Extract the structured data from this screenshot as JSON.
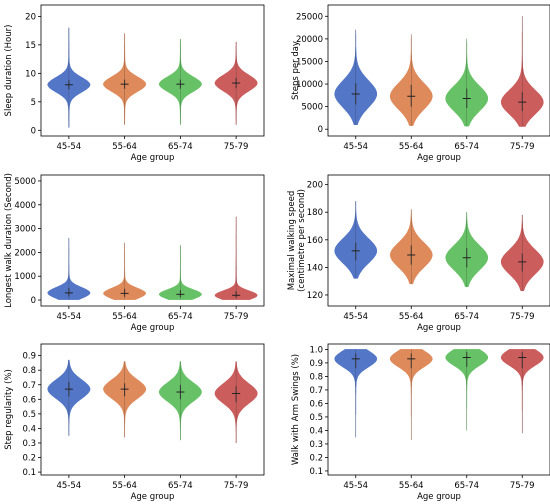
{
  "chart_data": [
    {
      "type": "violin",
      "xlabel": "Age group",
      "ylabel": "Sleep duration (Hour)",
      "categories": [
        "45-54",
        "55-64",
        "65-74",
        "75-79"
      ],
      "yticks": [
        "0",
        "5",
        "10",
        "15",
        "20"
      ],
      "ylim": [
        -1,
        22
      ],
      "distributions": [
        {
          "category": "45-54",
          "median": 8.0,
          "q1": 7.2,
          "q3": 8.8,
          "min": 0.5,
          "max": 18.0,
          "spread": 1.3
        },
        {
          "category": "55-64",
          "median": 8.1,
          "q1": 7.3,
          "q3": 8.9,
          "min": 1.0,
          "max": 17.0,
          "spread": 1.3
        },
        {
          "category": "65-74",
          "median": 8.1,
          "q1": 7.3,
          "q3": 8.9,
          "min": 1.0,
          "max": 16.0,
          "spread": 1.3
        },
        {
          "category": "75-79",
          "median": 8.3,
          "q1": 7.4,
          "q3": 9.2,
          "min": 1.0,
          "max": 15.5,
          "spread": 1.4
        }
      ]
    },
    {
      "type": "violin",
      "xlabel": "Age group",
      "ylabel": "Steps per day",
      "categories": [
        "45-54",
        "55-64",
        "65-74",
        "75-79"
      ],
      "yticks": [
        "0",
        "5000",
        "10000",
        "15000",
        "20000",
        "25000"
      ],
      "ylim": [
        -1500,
        27500
      ],
      "distributions": [
        {
          "category": "45-54",
          "median": 7800,
          "q1": 5500,
          "q3": 10200,
          "min": 1000,
          "max": 22000,
          "spread": 3000
        },
        {
          "category": "55-64",
          "median": 7300,
          "q1": 5000,
          "q3": 9800,
          "min": 800,
          "max": 21000,
          "spread": 2900
        },
        {
          "category": "65-74",
          "median": 6800,
          "q1": 4700,
          "q3": 9000,
          "min": 700,
          "max": 20000,
          "spread": 2800
        },
        {
          "category": "75-79",
          "median": 6000,
          "q1": 4000,
          "q3": 8200,
          "min": 600,
          "max": 25000,
          "spread": 2700
        }
      ]
    },
    {
      "type": "violin",
      "xlabel": "Age group",
      "ylabel": "Longest walk duration (Second)",
      "categories": [
        "45-54",
        "55-64",
        "65-74",
        "75-79"
      ],
      "yticks": [
        "0",
        "1000",
        "2000",
        "3000",
        "4000",
        "5000"
      ],
      "ylim": [
        -250,
        5250
      ],
      "distributions": [
        {
          "category": "45-54",
          "median": 300,
          "q1": 150,
          "q3": 500,
          "min": 20,
          "max": 2600,
          "spread": 230
        },
        {
          "category": "55-64",
          "median": 280,
          "q1": 140,
          "q3": 470,
          "min": 20,
          "max": 2400,
          "spread": 220
        },
        {
          "category": "65-74",
          "median": 240,
          "q1": 120,
          "q3": 420,
          "min": 20,
          "max": 2300,
          "spread": 200
        },
        {
          "category": "75-79",
          "median": 200,
          "q1": 100,
          "q3": 380,
          "min": 20,
          "max": 3500,
          "spread": 190
        }
      ]
    },
    {
      "type": "violin",
      "xlabel": "Age group",
      "ylabel": "Maximal walking speed (centimetre per second)",
      "categories": [
        "45-54",
        "55-64",
        "65-74",
        "75-79"
      ],
      "yticks": [
        "120",
        "140",
        "160",
        "180",
        "200"
      ],
      "ylim": [
        112,
        207
      ],
      "distributions": [
        {
          "category": "45-54",
          "median": 152,
          "q1": 145,
          "q3": 158,
          "min": 132,
          "max": 188,
          "spread": 9
        },
        {
          "category": "55-64",
          "median": 149,
          "q1": 142,
          "q3": 156,
          "min": 128,
          "max": 182,
          "spread": 9
        },
        {
          "category": "65-74",
          "median": 147,
          "q1": 140,
          "q3": 154,
          "min": 126,
          "max": 180,
          "spread": 9
        },
        {
          "category": "75-79",
          "median": 144,
          "q1": 137,
          "q3": 150,
          "min": 123,
          "max": 178,
          "spread": 9
        }
      ]
    },
    {
      "type": "violin",
      "xlabel": "Age group",
      "ylabel": "Step regularity (%)",
      "categories": [
        "45-54",
        "55-64",
        "65-74",
        "75-79"
      ],
      "yticks": [
        "0.1",
        "0.2",
        "0.3",
        "0.4",
        "0.5",
        "0.6",
        "0.7",
        "0.8",
        "0.9"
      ],
      "ylim": [
        0.08,
        0.98
      ],
      "distributions": [
        {
          "category": "45-54",
          "median": 0.67,
          "q1": 0.62,
          "q3": 0.72,
          "min": 0.35,
          "max": 0.87,
          "spread": 0.065
        },
        {
          "category": "55-64",
          "median": 0.67,
          "q1": 0.62,
          "q3": 0.71,
          "min": 0.34,
          "max": 0.86,
          "spread": 0.065
        },
        {
          "category": "65-74",
          "median": 0.65,
          "q1": 0.6,
          "q3": 0.7,
          "min": 0.32,
          "max": 0.86,
          "spread": 0.065
        },
        {
          "category": "75-79",
          "median": 0.64,
          "q1": 0.58,
          "q3": 0.69,
          "min": 0.3,
          "max": 0.86,
          "spread": 0.068
        }
      ]
    },
    {
      "type": "violin",
      "xlabel": "Age group",
      "ylabel": "Walk with Arm Swings (%)",
      "categories": [
        "45-54",
        "55-64",
        "65-74",
        "75-79"
      ],
      "yticks": [
        "0.1",
        "0.2",
        "0.3",
        "0.4",
        "0.5",
        "0.6",
        "0.7",
        "0.8",
        "0.9",
        "1.0"
      ],
      "ylim": [
        0.07,
        1.04
      ],
      "distributions": [
        {
          "category": "45-54",
          "median": 0.93,
          "q1": 0.86,
          "q3": 0.97,
          "min": 0.35,
          "max": 1.0,
          "spread": 0.06
        },
        {
          "category": "55-64",
          "median": 0.93,
          "q1": 0.86,
          "q3": 0.97,
          "min": 0.33,
          "max": 1.0,
          "spread": 0.06
        },
        {
          "category": "65-74",
          "median": 0.94,
          "q1": 0.87,
          "q3": 0.98,
          "min": 0.4,
          "max": 1.0,
          "spread": 0.06
        },
        {
          "category": "75-79",
          "median": 0.94,
          "q1": 0.86,
          "q3": 0.98,
          "min": 0.38,
          "max": 1.0,
          "spread": 0.06
        }
      ]
    }
  ],
  "colors": [
    "#4a6fc4",
    "#dd8452",
    "#5fbf5f",
    "#c95454"
  ]
}
